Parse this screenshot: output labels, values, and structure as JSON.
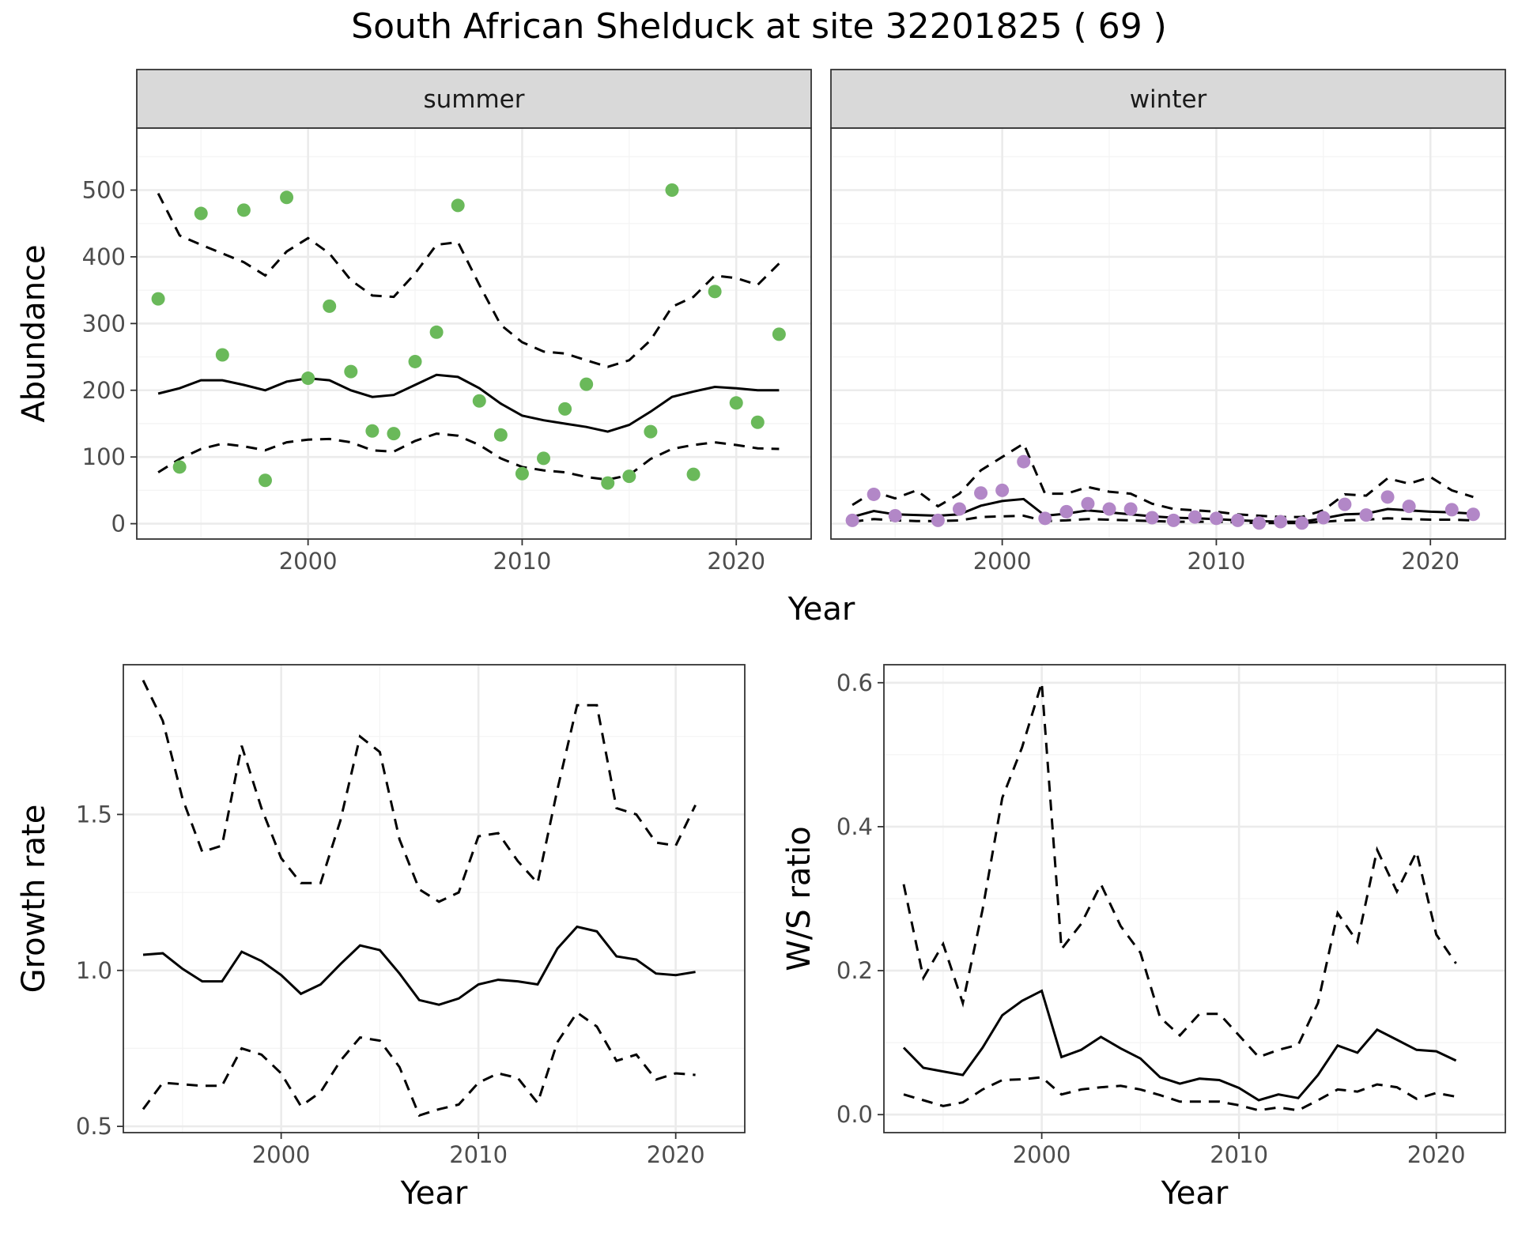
{
  "title": "South African Shelduck at site 32201825 ( 69 )",
  "colors": {
    "summer_points": "#6ab95a",
    "winter_points": "#b287c7",
    "lines": "#000000",
    "strip_bg": "#d9d9d9"
  },
  "chart_data": [
    {
      "type": "scatter",
      "panel": "summer",
      "strip_label": "summer",
      "xlabel": "Year",
      "ylabel": "Abundance",
      "xlim": [
        1992,
        2023.5
      ],
      "ylim": [
        -23,
        593
      ],
      "xticks": [
        2000,
        2010,
        2020
      ],
      "yticks": [
        0,
        100,
        200,
        300,
        400,
        500
      ],
      "points": {
        "x": [
          1993,
          1994,
          1995,
          1996,
          1997,
          1998,
          1999,
          2000,
          2001,
          2002,
          2003,
          2004,
          2005,
          2006,
          2007,
          2008,
          2009,
          2010,
          2011,
          2012,
          2013,
          2014,
          2015,
          2016,
          2017,
          2018,
          2019,
          2020,
          2021,
          2022
        ],
        "y": [
          337,
          85,
          465,
          253,
          470,
          65,
          489,
          218,
          326,
          228,
          139,
          135,
          243,
          287,
          477,
          184,
          133,
          75,
          98,
          172,
          209,
          61,
          71,
          138,
          500,
          74,
          348,
          181,
          152,
          284
        ]
      },
      "series": [
        {
          "name": "",
          "style": "solid",
          "x": [
            1993,
            1994,
            1995,
            1996,
            1997,
            1998,
            1999,
            2000,
            2001,
            2002,
            2003,
            2004,
            2005,
            2006,
            2007,
            2008,
            2009,
            2010,
            2011,
            2012,
            2013,
            2014,
            2015,
            2016,
            2017,
            2018,
            2019,
            2020,
            2021,
            2022
          ],
          "y": [
            195,
            203,
            215,
            215,
            208,
            200,
            213,
            218,
            215,
            200,
            190,
            193,
            208,
            223,
            220,
            203,
            180,
            162,
            155,
            150,
            145,
            138,
            148,
            168,
            190,
            198,
            205,
            203,
            200,
            200
          ]
        },
        {
          "name": "",
          "style": "dashed",
          "x": [
            1993,
            1994,
            1995,
            1996,
            1997,
            1998,
            1999,
            2000,
            2001,
            2002,
            2003,
            2004,
            2005,
            2006,
            2007,
            2008,
            2009,
            2010,
            2011,
            2012,
            2013,
            2014,
            2015,
            2016,
            2017,
            2018,
            2019,
            2020,
            2021,
            2022
          ],
          "y": [
            495,
            432,
            418,
            405,
            392,
            372,
            408,
            428,
            405,
            365,
            342,
            340,
            375,
            418,
            422,
            358,
            298,
            272,
            258,
            255,
            245,
            235,
            245,
            275,
            325,
            340,
            372,
            368,
            358,
            390
          ]
        },
        {
          "name": "",
          "style": "dashed",
          "x": [
            1993,
            1994,
            1995,
            1996,
            1997,
            1998,
            1999,
            2000,
            2001,
            2002,
            2003,
            2004,
            2005,
            2006,
            2007,
            2008,
            2009,
            2010,
            2011,
            2012,
            2013,
            2014,
            2015,
            2016,
            2017,
            2018,
            2019,
            2020,
            2021,
            2022
          ],
          "y": [
            77,
            97,
            112,
            120,
            116,
            110,
            122,
            126,
            127,
            122,
            110,
            108,
            124,
            135,
            132,
            118,
            98,
            85,
            80,
            77,
            70,
            66,
            73,
            97,
            112,
            118,
            122,
            118,
            113,
            112
          ]
        }
      ]
    },
    {
      "type": "scatter",
      "panel": "winter",
      "strip_label": "winter",
      "xlabel": "Year",
      "ylabel": "Abundance",
      "xlim": [
        1992,
        2023.5
      ],
      "ylim": [
        -23,
        593
      ],
      "xticks": [
        2000,
        2010,
        2020
      ],
      "yticks": [
        0,
        100,
        200,
        300,
        400,
        500
      ],
      "points": {
        "x": [
          1993,
          1994,
          1995,
          1996,
          1997,
          1998,
          1999,
          2000,
          2001,
          2002,
          2003,
          2004,
          2005,
          2006,
          2007,
          2008,
          2009,
          2010,
          2011,
          2012,
          2013,
          2014,
          2015,
          2016,
          2017,
          2018,
          2019,
          2020,
          2021,
          2022
        ],
        "y": [
          5,
          44,
          12,
          null,
          5,
          22,
          46,
          50,
          93,
          8,
          18,
          30,
          22,
          22,
          9,
          5,
          10,
          8,
          5,
          1,
          3,
          1,
          9,
          29,
          13,
          40,
          26,
          null,
          21,
          14
        ]
      },
      "series": [
        {
          "name": "",
          "style": "solid",
          "x": [
            1993,
            1994,
            1995,
            1996,
            1997,
            1998,
            1999,
            2000,
            2001,
            2002,
            2003,
            2004,
            2005,
            2006,
            2007,
            2008,
            2009,
            2010,
            2011,
            2012,
            2013,
            2014,
            2015,
            2016,
            2017,
            2018,
            2019,
            2020,
            2021,
            2022
          ],
          "y": [
            10,
            19,
            14,
            13,
            12,
            14,
            27,
            34,
            37,
            12,
            15,
            20,
            17,
            14,
            11,
            9,
            8,
            7,
            5,
            4,
            3,
            3,
            8,
            14,
            15,
            22,
            20,
            18,
            17,
            15
          ]
        },
        {
          "name": "",
          "style": "dashed",
          "x": [
            1993,
            1994,
            1995,
            1996,
            1997,
            1998,
            1999,
            2000,
            2001,
            2002,
            2003,
            2004,
            2005,
            2006,
            2007,
            2008,
            2009,
            2010,
            2011,
            2012,
            2013,
            2014,
            2015,
            2016,
            2017,
            2018,
            2019,
            2020,
            2021,
            2022
          ],
          "y": [
            28,
            48,
            38,
            50,
            26,
            45,
            80,
            100,
            120,
            45,
            45,
            55,
            48,
            45,
            30,
            22,
            20,
            18,
            14,
            12,
            10,
            10,
            20,
            44,
            42,
            68,
            60,
            70,
            50,
            40
          ]
        },
        {
          "name": "",
          "style": "dashed",
          "x": [
            1993,
            1994,
            1995,
            1996,
            1997,
            1998,
            1999,
            2000,
            2001,
            2002,
            2003,
            2004,
            2005,
            2006,
            2007,
            2008,
            2009,
            2010,
            2011,
            2012,
            2013,
            2014,
            2015,
            2016,
            2017,
            2018,
            2019,
            2020,
            2021,
            2022
          ],
          "y": [
            3,
            7,
            5,
            4,
            4,
            5,
            10,
            11,
            12,
            4,
            5,
            7,
            6,
            5,
            4,
            3,
            3,
            3,
            2,
            1,
            1,
            1,
            3,
            5,
            6,
            8,
            7,
            6,
            6,
            5
          ]
        }
      ]
    },
    {
      "type": "line",
      "panel": "growth",
      "xlabel": "Year",
      "ylabel": "Growth rate",
      "xlim": [
        1992,
        2023.5
      ],
      "ylim": [
        0.48,
        1.98
      ],
      "xticks": [
        2000,
        2010,
        2020
      ],
      "yticks": [
        0.5,
        1.0,
        1.5
      ],
      "ytick_labels": [
        "0.5",
        "1.0",
        "1.5"
      ],
      "series": [
        {
          "name": "",
          "style": "solid",
          "x": [
            1993,
            1994,
            1995,
            1996,
            1997,
            1998,
            1999,
            2000,
            2001,
            2002,
            2003,
            2004,
            2005,
            2006,
            2007,
            2008,
            2009,
            2010,
            2011,
            2012,
            2013,
            2014,
            2015,
            2016,
            2017,
            2018,
            2019,
            2020,
            2021
          ],
          "y": [
            1.05,
            1.055,
            1.005,
            0.965,
            0.965,
            1.06,
            1.03,
            0.985,
            0.925,
            0.955,
            1.02,
            1.08,
            1.065,
            0.99,
            0.905,
            0.89,
            0.91,
            0.955,
            0.97,
            0.965,
            0.955,
            1.07,
            1.14,
            1.125,
            1.045,
            1.035,
            0.99,
            0.985,
            0.995
          ]
        },
        {
          "name": "",
          "style": "dashed",
          "x": [
            1993,
            1994,
            1995,
            1996,
            1997,
            1998,
            1999,
            2000,
            2001,
            2002,
            2003,
            2004,
            2005,
            2006,
            2007,
            2008,
            2009,
            2010,
            2011,
            2012,
            2013,
            2014,
            2015,
            2016,
            2017,
            2018,
            2019,
            2020,
            2021
          ],
          "y": [
            1.93,
            1.8,
            1.55,
            1.38,
            1.4,
            1.72,
            1.52,
            1.36,
            1.28,
            1.28,
            1.48,
            1.75,
            1.7,
            1.42,
            1.26,
            1.22,
            1.25,
            1.43,
            1.44,
            1.35,
            1.28,
            1.58,
            1.85,
            1.85,
            1.52,
            1.5,
            1.41,
            1.4,
            1.53
          ]
        },
        {
          "name": "",
          "style": "dashed",
          "x": [
            1993,
            1994,
            1995,
            1996,
            1997,
            1998,
            1999,
            2000,
            2001,
            2002,
            2003,
            2004,
            2005,
            2006,
            2007,
            2008,
            2009,
            2010,
            2011,
            2012,
            2013,
            2014,
            2015,
            2016,
            2017,
            2018,
            2019,
            2020,
            2021
          ],
          "y": [
            0.555,
            0.64,
            0.635,
            0.63,
            0.63,
            0.75,
            0.73,
            0.67,
            0.565,
            0.61,
            0.71,
            0.785,
            0.775,
            0.69,
            0.535,
            0.555,
            0.57,
            0.64,
            0.67,
            0.655,
            0.575,
            0.77,
            0.865,
            0.82,
            0.71,
            0.73,
            0.65,
            0.67,
            0.665
          ]
        }
      ]
    },
    {
      "type": "line",
      "panel": "ratio",
      "xlabel": "Year",
      "ylabel": "W/S ratio",
      "xlim": [
        1992,
        2023.5
      ],
      "ylim": [
        -0.025,
        0.625
      ],
      "xticks": [
        2000,
        2010,
        2020
      ],
      "yticks": [
        0.0,
        0.2,
        0.4,
        0.6
      ],
      "ytick_labels": [
        "0.0",
        "0.2",
        "0.4",
        "0.6"
      ],
      "series": [
        {
          "name": "",
          "style": "solid",
          "x": [
            1993,
            1994,
            1995,
            1996,
            1997,
            1998,
            1999,
            2000,
            2001,
            2002,
            2003,
            2004,
            2005,
            2006,
            2007,
            2008,
            2009,
            2010,
            2011,
            2012,
            2013,
            2014,
            2015,
            2016,
            2017,
            2018,
            2019,
            2020,
            2021
          ],
          "y": [
            0.093,
            0.065,
            0.06,
            0.055,
            0.093,
            0.138,
            0.158,
            0.172,
            0.08,
            0.09,
            0.108,
            0.092,
            0.078,
            0.052,
            0.043,
            0.05,
            0.048,
            0.037,
            0.02,
            0.028,
            0.023,
            0.055,
            0.096,
            0.086,
            0.118,
            0.104,
            0.09,
            0.088,
            0.075
          ]
        },
        {
          "name": "",
          "style": "dashed",
          "x": [
            1993,
            1994,
            1995,
            1996,
            1997,
            1998,
            1999,
            2000,
            2001,
            2002,
            2003,
            2004,
            2005,
            2006,
            2007,
            2008,
            2009,
            2010,
            2011,
            2012,
            2013,
            2014,
            2015,
            2016,
            2017,
            2018,
            2019,
            2020,
            2021
          ],
          "y": [
            0.32,
            0.19,
            0.237,
            0.155,
            0.285,
            0.44,
            0.51,
            0.6,
            0.23,
            0.265,
            0.32,
            0.262,
            0.225,
            0.135,
            0.11,
            0.14,
            0.14,
            0.11,
            0.08,
            0.09,
            0.097,
            0.155,
            0.28,
            0.24,
            0.368,
            0.31,
            0.365,
            0.25,
            0.21
          ]
        },
        {
          "name": "",
          "style": "dashed",
          "x": [
            1993,
            1994,
            1995,
            1996,
            1997,
            1998,
            1999,
            2000,
            2001,
            2002,
            2003,
            2004,
            2005,
            2006,
            2007,
            2008,
            2009,
            2010,
            2011,
            2012,
            2013,
            2014,
            2015,
            2016,
            2017,
            2018,
            2019,
            2020,
            2021
          ],
          "y": [
            0.028,
            0.02,
            0.012,
            0.017,
            0.035,
            0.048,
            0.049,
            0.052,
            0.028,
            0.035,
            0.038,
            0.04,
            0.035,
            0.027,
            0.018,
            0.018,
            0.018,
            0.013,
            0.006,
            0.01,
            0.006,
            0.02,
            0.035,
            0.032,
            0.042,
            0.038,
            0.022,
            0.03,
            0.025
          ]
        }
      ]
    }
  ]
}
